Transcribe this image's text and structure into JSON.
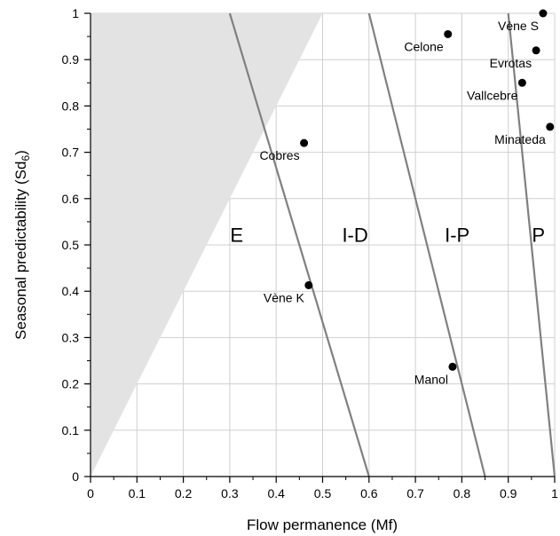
{
  "chart_data": {
    "type": "scatter",
    "xlabel": "Flow permanence (Mf)",
    "ylabel_main": "Seasonal predictability (Sd",
    "ylabel_sub": "6",
    "ylabel_close": ")",
    "xlim": [
      0,
      1
    ],
    "ylim": [
      0,
      1
    ],
    "grid": true,
    "x_ticks": [
      "0",
      "0.1",
      "0.2",
      "0.3",
      "0.4",
      "0.5",
      "0.6",
      "0.7",
      "0.8",
      "0.9",
      "1"
    ],
    "y_ticks": [
      "0",
      "0.1",
      "0.2",
      "0.3",
      "0.4",
      "0.5",
      "0.6",
      "0.7",
      "0.8",
      "0.9",
      "1"
    ],
    "shaded_region": [
      [
        0,
        0
      ],
      [
        0,
        1
      ],
      [
        0.5,
        1
      ]
    ],
    "shaded_color": "#e3e3e3",
    "boundary_lines": [
      {
        "x1": 0.3,
        "y1": 1,
        "x2": 0.6,
        "y2": 0
      },
      {
        "x1": 0.6,
        "y1": 1,
        "x2": 0.85,
        "y2": 0
      },
      {
        "x1": 0.9,
        "y1": 1,
        "x2": 1.0,
        "y2": 0
      }
    ],
    "line_color": "#808080",
    "zones": [
      {
        "label": "E",
        "x": 0.315,
        "y": 0.52
      },
      {
        "label": "I-D",
        "x": 0.57,
        "y": 0.52
      },
      {
        "label": "I-P",
        "x": 0.79,
        "y": 0.52
      },
      {
        "label": "P",
        "x": 0.965,
        "y": 0.52
      }
    ],
    "points": [
      {
        "label": "Vène S",
        "x": 0.975,
        "y": 1.0
      },
      {
        "label": "Celone",
        "x": 0.77,
        "y": 0.955
      },
      {
        "label": "Evrotas",
        "x": 0.96,
        "y": 0.92
      },
      {
        "label": "Vallcebre",
        "x": 0.93,
        "y": 0.85
      },
      {
        "label": "Minateda",
        "x": 0.99,
        "y": 0.755
      },
      {
        "label": "Cobres",
        "x": 0.46,
        "y": 0.72
      },
      {
        "label": "Vène K",
        "x": 0.47,
        "y": 0.413
      },
      {
        "label": "Manol",
        "x": 0.78,
        "y": 0.237
      }
    ]
  }
}
